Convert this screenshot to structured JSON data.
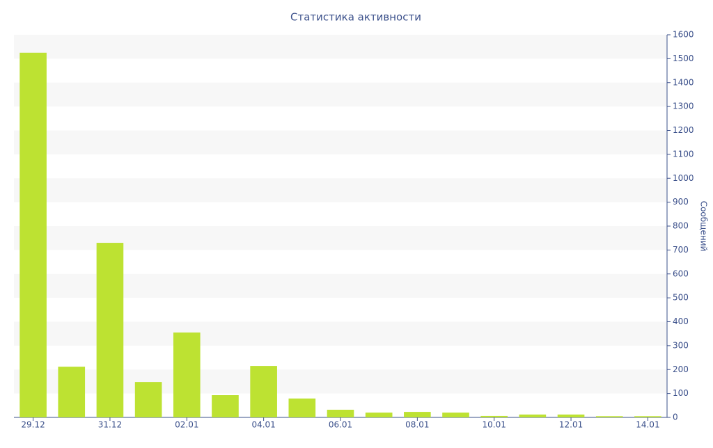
{
  "chart_data": {
    "type": "bar",
    "title": "Статистика активности",
    "y_label": "Сообщений",
    "categories": [
      "29.12",
      null,
      "31.12",
      null,
      "02.01",
      null,
      "04.01",
      null,
      "06.01",
      null,
      "08.01",
      null,
      "10.01",
      null,
      "12.01",
      null,
      "14.01"
    ],
    "values": [
      1525,
      212,
      730,
      148,
      355,
      93,
      215,
      79,
      32,
      20,
      23,
      20,
      6,
      12,
      12,
      5,
      5
    ],
    "color": "#bde232",
    "ylim": [
      0,
      1600
    ],
    "yticks": [
      0,
      100,
      200,
      300,
      400,
      500,
      600,
      700,
      800,
      900,
      1000,
      1100,
      1200,
      1300,
      1400,
      1500,
      1600
    ],
    "grid": true
  }
}
